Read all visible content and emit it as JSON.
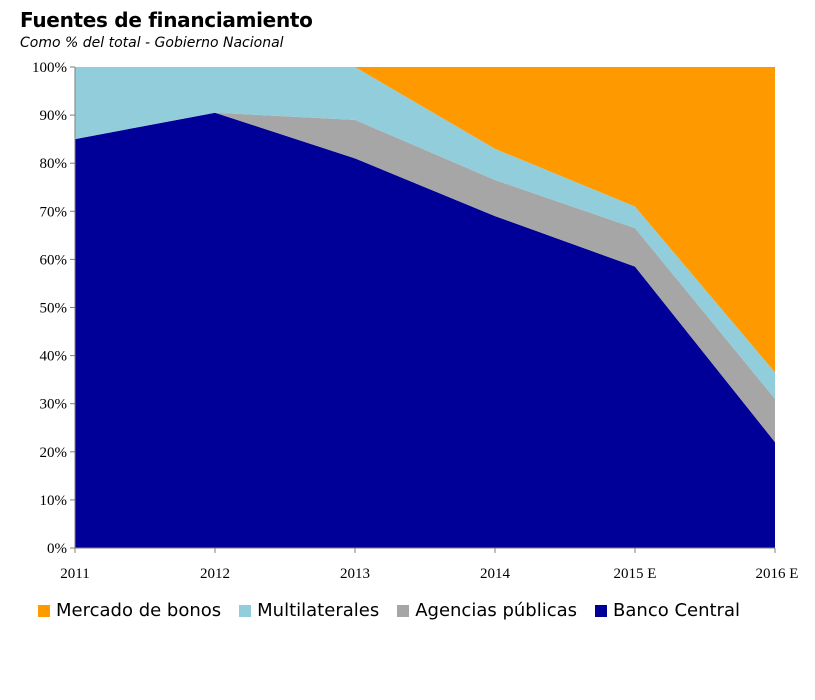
{
  "chart_data": {
    "type": "area",
    "stacked": true,
    "title": "Fuentes de financiamiento",
    "subtitle": "Como % del total - Gobierno Nacional",
    "categories": [
      "2011",
      "2012",
      "2013",
      "2014",
      "2015 E",
      "2016 E"
    ],
    "ylim": [
      0,
      100
    ],
    "yticks": [
      "0%",
      "10%",
      "20%",
      "30%",
      "40%",
      "50%",
      "60%",
      "70%",
      "80%",
      "90%",
      "100%"
    ],
    "series": [
      {
        "name": "Banco Central",
        "color": "#000099",
        "values": [
          85,
          90.5,
          81,
          69,
          58.5,
          22
        ]
      },
      {
        "name": "Agencias públicas",
        "color": "#a6a6a6",
        "values": [
          0,
          0,
          8,
          7.5,
          8,
          9
        ]
      },
      {
        "name": "Multilaterales",
        "color": "#92cddc",
        "values": [
          15,
          9.5,
          11,
          6.5,
          4.5,
          5.5
        ]
      },
      {
        "name": "Mercado de bonos",
        "color": "#ff9900",
        "values": [
          0,
          0,
          0,
          17,
          29,
          63.5
        ]
      }
    ],
    "legend": {
      "position": "bottom",
      "order": [
        "Mercado de bonos",
        "Multilaterales",
        "Agencias públicas",
        "Banco Central"
      ]
    },
    "grid": false
  }
}
